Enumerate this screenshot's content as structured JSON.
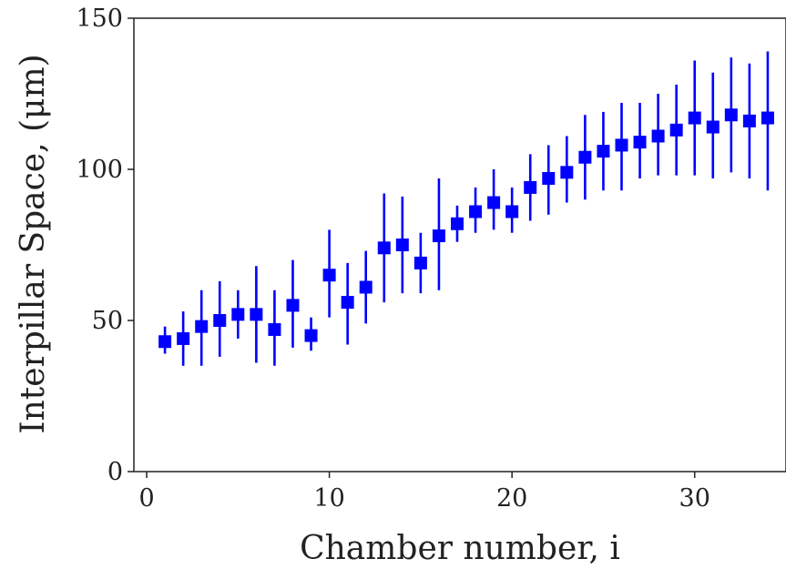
{
  "chart_data": {
    "type": "scatter",
    "title": "",
    "xlabel": "Chamber number, i",
    "ylabel": "Interpillar Space, (μm)",
    "xlim": [
      -0.7,
      35.0
    ],
    "ylim": [
      0,
      150
    ],
    "xticks": [
      0,
      10,
      20,
      30
    ],
    "yticks": [
      0,
      50,
      100,
      150
    ],
    "grid": false,
    "marker": "square",
    "color": "#0000ff",
    "x": [
      1,
      2,
      3,
      4,
      5,
      6,
      7,
      8,
      9,
      10,
      11,
      12,
      13,
      14,
      15,
      16,
      17,
      18,
      19,
      20,
      21,
      22,
      23,
      24,
      25,
      26,
      27,
      28,
      29,
      30,
      31,
      32,
      33,
      34
    ],
    "y": [
      43,
      44,
      48,
      50,
      52,
      52,
      47,
      55,
      45,
      65,
      56,
      61,
      74,
      75,
      69,
      78,
      82,
      86,
      89,
      86,
      94,
      97,
      99,
      104,
      106,
      108,
      109,
      111,
      113,
      117,
      114,
      118,
      116,
      117
    ],
    "err_low": [
      39,
      35,
      35,
      38,
      44,
      36,
      35,
      41,
      40,
      51,
      42,
      49,
      56,
      59,
      59,
      60,
      76,
      79,
      80,
      79,
      83,
      85,
      89,
      90,
      93,
      93,
      97,
      98,
      98,
      98,
      97,
      99,
      97,
      93
    ],
    "err_high": [
      48,
      53,
      60,
      63,
      60,
      68,
      60,
      70,
      51,
      80,
      69,
      73,
      92,
      91,
      79,
      97,
      88,
      94,
      100,
      94,
      105,
      108,
      111,
      118,
      119,
      122,
      122,
      125,
      128,
      136,
      132,
      137,
      135,
      139
    ]
  }
}
